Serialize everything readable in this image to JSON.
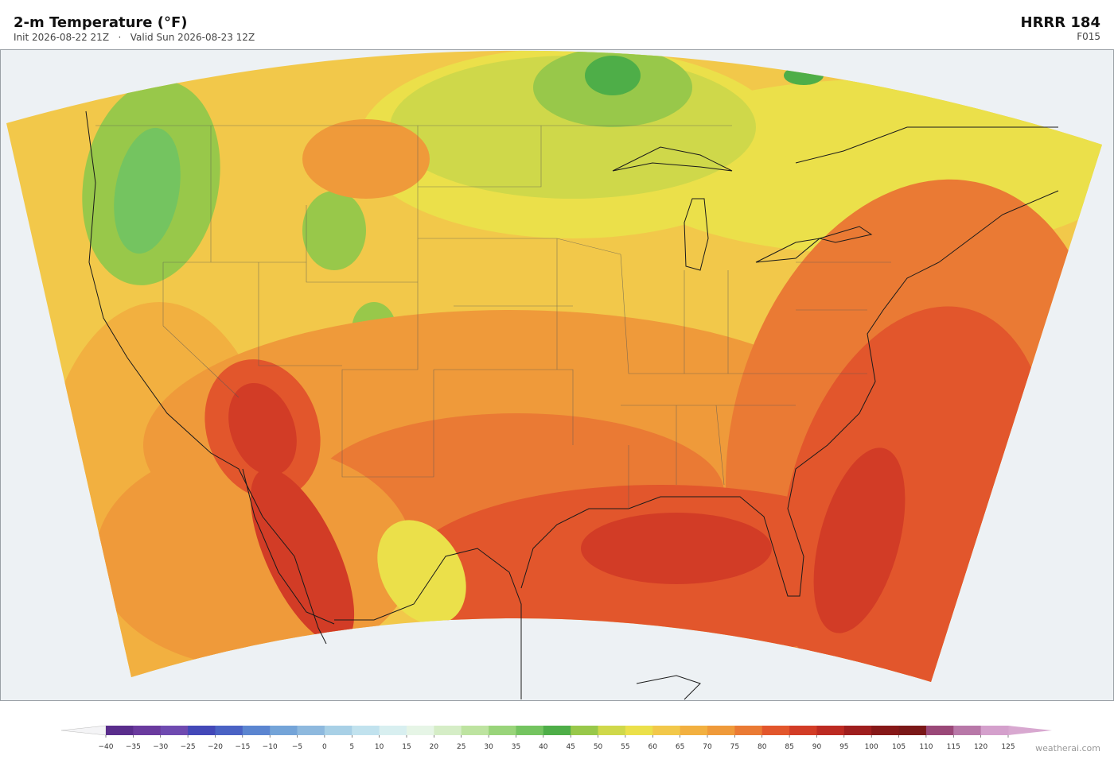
{
  "header": {
    "title": "2-m Temperature  (°F)",
    "subtitle": "Init 2026-08-22 21Z   ·   Valid Sun 2026-08-23 12Z",
    "model": "HRRR  184",
    "forecast_hour": "F015"
  },
  "colorbar": {
    "ticks": [
      {
        "value": -40,
        "label": "−40"
      },
      {
        "value": -35,
        "label": "−35"
      },
      {
        "value": -30,
        "label": "−30"
      },
      {
        "value": -25,
        "label": "−25"
      },
      {
        "value": -20,
        "label": "−20"
      },
      {
        "value": -15,
        "label": "−15"
      },
      {
        "value": -10,
        "label": "−10"
      },
      {
        "value": -5,
        "label": "−5"
      },
      0,
      5,
      10,
      15,
      20,
      25,
      30,
      35,
      40,
      45,
      50,
      55,
      60,
      65,
      70,
      75,
      80,
      85,
      90,
      95,
      100,
      105,
      110,
      115,
      120,
      125
    ],
    "colors": [
      "#5a2d8c",
      "#6a3a9e",
      "#6f4ab0",
      "#4348b8",
      "#4a62c4",
      "#5b85d0",
      "#74a4d8",
      "#8eb9de",
      "#a8d0e6",
      "#c1e2ee",
      "#d8eff0",
      "#e6f5e6",
      "#d5edc6",
      "#bde3a0",
      "#99d47a",
      "#74c460",
      "#4eae48",
      "#98c84a",
      "#cfd84a",
      "#ebe04a",
      "#f2c84a",
      "#f2b040",
      "#ef9a3a",
      "#ea7a34",
      "#e2562c",
      "#d23c26",
      "#bc2a22",
      "#9e1e1e",
      "#861818",
      "#7a1818",
      "#9a4878",
      "#b878a8",
      "#d4a0cc"
    ],
    "extend_colors": [
      "#f4f4f6",
      "#d8a8d0"
    ]
  },
  "footer": {
    "credit": "weatherai.com"
  }
}
